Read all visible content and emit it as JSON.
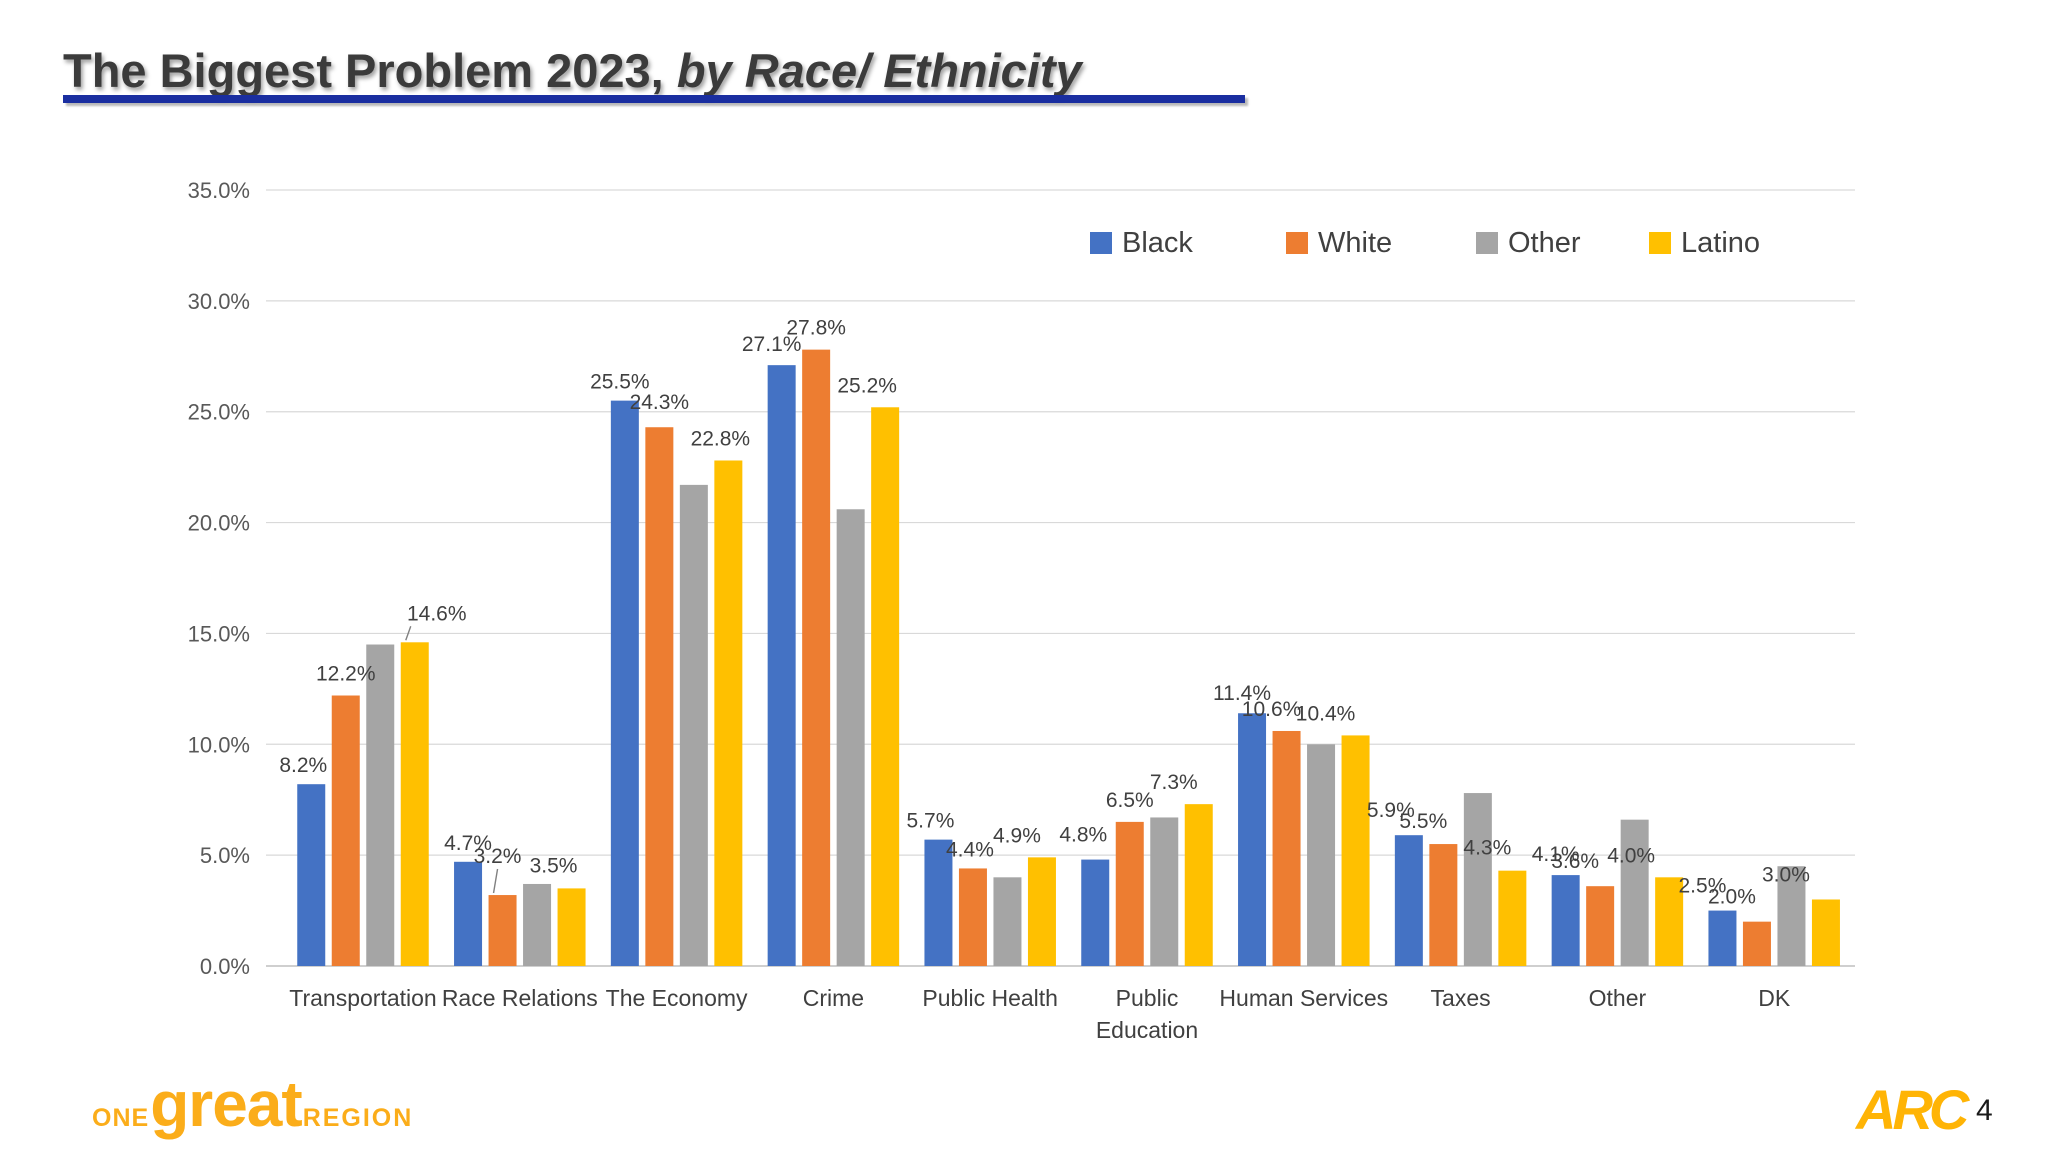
{
  "page": {
    "title_regular": "The Biggest Problem 2023, ",
    "title_emphasis": "by Race/ Ethnicity",
    "page_number": "4"
  },
  "footer": {
    "logo_one": "ONE",
    "logo_great": "great",
    "logo_region": "REGION",
    "arc_logo": "ARC"
  },
  "colors": {
    "title_text": "#3b3b3b",
    "title_underline": "#1A2EA0",
    "logo_gold": "#FBAD1A",
    "arc_gold": "#FFB405",
    "grid": "#D9D9D9",
    "axis_line": "#BFBFBF",
    "axis_text": "#595959",
    "label_text": "#404040",
    "leader_line": "#808080"
  },
  "chart_data": {
    "type": "bar",
    "title": "The Biggest Problem 2023, by Race/ Ethnicity",
    "categories": [
      "Transportation",
      "Race Relations",
      "The Economy",
      "Crime",
      "Public Health",
      "Public\nEducation",
      "Human Services",
      "Taxes",
      "Other",
      "DK"
    ],
    "series": [
      {
        "name": "Black",
        "color": "#4472C4",
        "values": [
          8.2,
          4.7,
          25.5,
          27.1,
          5.7,
          4.8,
          11.4,
          5.9,
          4.1,
          2.5
        ],
        "labels": [
          "8.2%",
          "4.7%",
          "25.5%",
          "27.1%",
          "5.7%",
          "4.8%",
          "11.4%",
          "5.9%",
          "4.1%",
          "2.5%"
        ],
        "label_offsets": [
          [
            -8,
            -2
          ],
          [
            0,
            -2
          ],
          [
            -5,
            -2
          ],
          [
            -10,
            -4
          ],
          [
            -8,
            -2
          ],
          [
            -12,
            -8
          ],
          [
            -10,
            -3
          ],
          [
            -18,
            -8
          ],
          [
            -10,
            -4
          ],
          [
            -20,
            -8
          ]
        ]
      },
      {
        "name": "White",
        "color": "#ED7D31",
        "values": [
          12.2,
          3.2,
          24.3,
          27.8,
          4.4,
          6.5,
          10.6,
          5.5,
          3.6,
          2.0
        ],
        "labels": [
          "12.2%",
          "3.2%",
          "24.3%",
          "27.8%",
          "4.4%",
          "6.5%",
          "10.6%",
          "5.5%",
          "3.6%",
          "2.0%"
        ],
        "label_offsets": [
          [
            0,
            -5
          ],
          [
            -5,
            -22
          ],
          [
            0,
            -8
          ],
          [
            0,
            -5
          ],
          [
            -3,
            -2
          ],
          [
            0,
            -5
          ],
          [
            -15,
            -5
          ],
          [
            -20,
            -6
          ],
          [
            -25,
            -8
          ],
          [
            -25,
            -8
          ]
        ]
      },
      {
        "name": "Other",
        "color": "#A5A5A5",
        "values": [
          14.5,
          3.7,
          21.7,
          20.6,
          4.0,
          6.7,
          10.0,
          7.8,
          6.6,
          4.5
        ],
        "labels": [
          null,
          null,
          null,
          null,
          null,
          null,
          null,
          null,
          null,
          null
        ],
        "label_offsets": [
          [
            0,
            0
          ],
          [
            0,
            0
          ],
          [
            0,
            0
          ],
          [
            0,
            0
          ],
          [
            0,
            0
          ],
          [
            0,
            0
          ],
          [
            0,
            0
          ],
          [
            0,
            0
          ],
          [
            0,
            0
          ],
          [
            0,
            0
          ]
        ]
      },
      {
        "name": "Latino",
        "color": "#FFC000",
        "values": [
          14.6,
          3.5,
          22.8,
          25.2,
          4.9,
          7.3,
          10.4,
          4.3,
          4.0,
          3.0
        ],
        "labels": [
          "14.6%",
          "3.5%",
          "22.8%",
          "25.2%",
          "4.9%",
          "7.3%",
          "10.4%",
          "4.3%",
          "4.0%",
          "3.0%"
        ],
        "label_offsets": [
          [
            22,
            -12
          ],
          [
            -18,
            -6
          ],
          [
            -8,
            -5
          ],
          [
            -18,
            -5
          ],
          [
            -25,
            -5
          ],
          [
            -25,
            -5
          ],
          [
            -30,
            -5
          ],
          [
            -25,
            -6
          ],
          [
            -38,
            -5
          ],
          [
            -40,
            -8
          ]
        ]
      }
    ],
    "ylim": [
      0,
      35
    ],
    "ytick_step": 5,
    "ytick_labels": [
      "0.0%",
      "5.0%",
      "10.0%",
      "15.0%",
      "20.0%",
      "25.0%",
      "30.0%",
      "35.0%"
    ],
    "grid": true,
    "legend_position": "top-right-inside",
    "legend_entries": [
      "Black",
      "White",
      "Other",
      "Latino"
    ],
    "leader_lines": [
      {
        "series_index": 3,
        "category_index": 0
      },
      {
        "series_index": 1,
        "category_index": 1
      }
    ]
  }
}
